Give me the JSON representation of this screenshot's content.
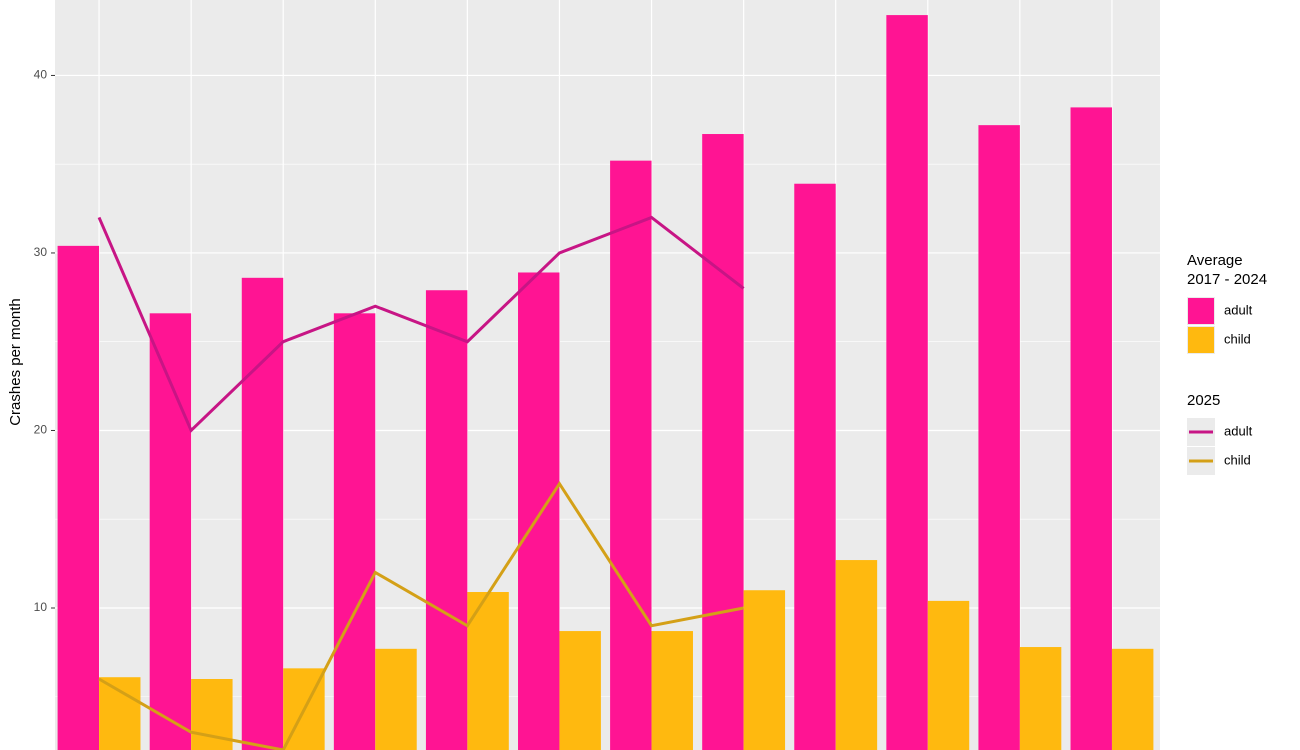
{
  "chart_data": {
    "type": "bar",
    "y_label": "Crashes per month",
    "categories": [
      null,
      null,
      null,
      null,
      null,
      null,
      null,
      null,
      null,
      null,
      null,
      null
    ],
    "ylim": [
      2.0,
      44.25
    ],
    "yticks": [
      10,
      20,
      30,
      40
    ],
    "grid": true,
    "legend_position": "right",
    "legend_groups": [
      {
        "title": [
          "Average",
          "2017 - 2024"
        ],
        "type": "bar"
      },
      {
        "title": [
          "2025"
        ],
        "type": "line"
      }
    ],
    "series": [
      {
        "name": "adult",
        "type": "bar",
        "color": "#ff1493",
        "values": [
          30.4,
          26.6,
          28.6,
          26.6,
          27.9,
          28.9,
          35.2,
          36.7,
          33.9,
          43.4,
          37.2,
          38.2
        ]
      },
      {
        "name": "child",
        "type": "bar",
        "color": "#ffb90f",
        "values": [
          6.1,
          6.0,
          6.6,
          7.7,
          10.9,
          8.7,
          8.7,
          11.0,
          12.7,
          10.4,
          7.8,
          7.7
        ]
      },
      {
        "name": "adult",
        "type": "line",
        "color": "#c71585",
        "values": [
          32,
          20,
          25,
          27,
          25,
          30,
          32,
          28,
          null,
          null,
          null,
          null
        ]
      },
      {
        "name": "child",
        "type": "line",
        "color": "#d4a017",
        "values": [
          6,
          3,
          2,
          12,
          9,
          17,
          9,
          10,
          null,
          null,
          null,
          null
        ]
      }
    ]
  }
}
